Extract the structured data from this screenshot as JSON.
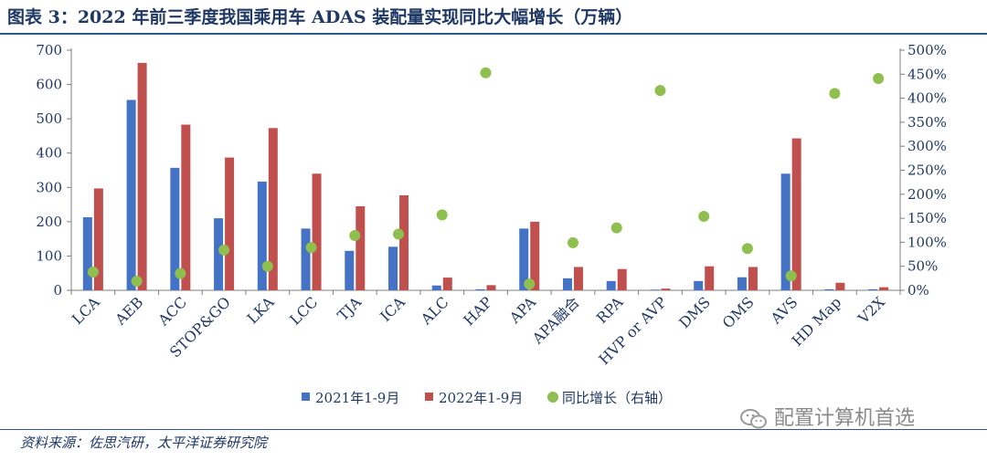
{
  "title": "图表 3：2022 年前三季度我国乘用车 ADAS 装配量实现同比大幅增长（万辆）",
  "source": "资料来源：佐思汽研，太平洋证券研究院",
  "watermark": "配置计算机首选",
  "colors": {
    "series2021": "#4472c4",
    "series2022": "#c0504d",
    "growth": "#8fbf4f",
    "text": "#1f3864"
  },
  "chart_data": {
    "type": "bar",
    "categories": [
      "LCA",
      "AEB",
      "ACC",
      "STOP&GO",
      "LKA",
      "LCC",
      "TJA",
      "ICA",
      "ALC",
      "HAP",
      "APA",
      "APA融合",
      "RPA",
      "HVP or AVP",
      "DMS",
      "OMS",
      "AVS",
      "HD Map",
      "V2X"
    ],
    "series": [
      {
        "name": "2021年1-9月",
        "type": "bar",
        "axis": "left",
        "values": [
          213,
          555,
          357,
          210,
          317,
          180,
          115,
          127,
          14,
          3,
          180,
          35,
          27,
          2,
          27,
          38,
          340,
          3,
          3
        ]
      },
      {
        "name": "2022年1-9月",
        "type": "bar",
        "axis": "left",
        "values": [
          297,
          663,
          483,
          387,
          473,
          340,
          245,
          277,
          37,
          15,
          200,
          68,
          62,
          5,
          70,
          68,
          443,
          22,
          9
        ]
      },
      {
        "name": "同比增长（右轴）",
        "type": "scatter",
        "axis": "right",
        "values": [
          38,
          19,
          35,
          84,
          50,
          89,
          114,
          117,
          157,
          453,
          13,
          99,
          130,
          416,
          154,
          87,
          30,
          410,
          441
        ]
      }
    ],
    "y_left": {
      "ylim": [
        0,
        700
      ],
      "ticks": [
        "0",
        "100",
        "200",
        "300",
        "400",
        "500",
        "600",
        "700"
      ]
    },
    "y_right": {
      "ylim": [
        0,
        500
      ],
      "ticks": [
        "0%",
        "50%",
        "100%",
        "150%",
        "200%",
        "250%",
        "300%",
        "350%",
        "400%",
        "450%",
        "500%"
      ]
    },
    "legend_position": "bottom"
  }
}
